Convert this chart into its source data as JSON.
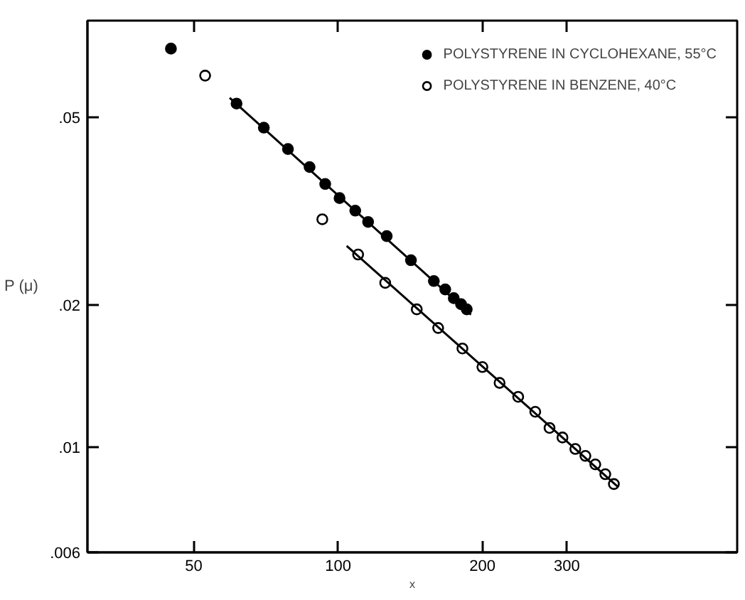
{
  "chart_data": {
    "type": "scatter",
    "xlabel": "x",
    "ylabel": "P (μ)",
    "log": "xy",
    "xlim": [
      30,
      680
    ],
    "ylim": [
      0.006,
      0.08
    ],
    "xticks": [
      50,
      100,
      200,
      300
    ],
    "yticks": [
      {
        "value": 0.05,
        "label": ".05"
      },
      {
        "value": 0.02,
        "label": ".02"
      },
      {
        "value": 0.01,
        "label": ".01"
      },
      {
        "value": 0.006,
        "label": ".006"
      }
    ],
    "grid": false,
    "legend": "top right",
    "series": [
      {
        "name": "POLYSTYRENE IN CYCLOHEXANE, 55°C",
        "color": "#000000",
        "marker": "circle",
        "x": [
          44.8,
          61.4,
          70.0,
          78.6,
          87.2,
          94.0,
          100.7,
          108.6,
          115.5,
          126.3,
          141.9,
          158.4,
          167.3,
          174.3,
          180.5,
          185.5
        ],
        "values": [
          0.0698,
          0.0534,
          0.0475,
          0.0428,
          0.0392,
          0.0361,
          0.0337,
          0.0317,
          0.03,
          0.028,
          0.0249,
          0.0225,
          0.0216,
          0.0207,
          0.0201,
          0.0196
        ]
      },
      {
        "name": "POLYSTYRENE IN BENZENE, 40°C",
        "color": "#000000",
        "marker": "circle",
        "x": [
          52.8,
          92.7,
          110.1,
          125.4,
          145.9,
          161.7,
          181.7,
          200,
          217.2,
          237.5,
          257.8,
          276.1,
          293.8,
          312.5,
          328.0,
          344.0,
          360.9,
          376.1
        ],
        "values": [
          0.0612,
          0.0304,
          0.0256,
          0.0223,
          0.0196,
          0.0179,
          0.0162,
          0.0148,
          0.0137,
          0.0128,
          0.0119,
          0.011,
          0.0105,
          0.00993,
          0.0096,
          0.00921,
          0.00878,
          0.00837
        ]
      },
      {
        "type": "line",
        "marker": "none",
        "color": "#000000",
        "x": [
          59.4,
          189.3
        ],
        "values": [
          0.0549,
          0.0191
        ]
      },
      {
        "type": "line",
        "marker": "none",
        "color": "#000000",
        "x": [
          104.2,
          383.9
        ],
        "values": [
          0.0267,
          0.00825
        ]
      }
    ]
  }
}
